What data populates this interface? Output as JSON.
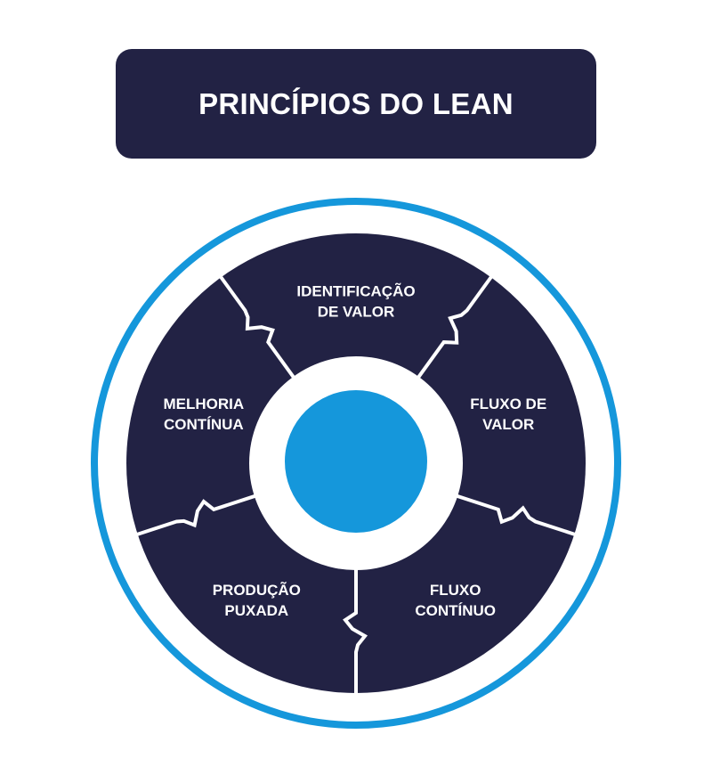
{
  "title": "PRINCÍPIOS DO LEAN",
  "colors": {
    "navy": "#222244",
    "blue": "#1597db",
    "white": "#ffffff"
  },
  "segments": [
    {
      "id": "identificacao",
      "lines": [
        "IDENTIFICAÇÃO",
        "DE VALOR"
      ]
    },
    {
      "id": "fluxo-de-valor",
      "lines": [
        "FLUXO DE",
        "VALOR"
      ]
    },
    {
      "id": "fluxo-continuo",
      "lines": [
        "FLUXO",
        "CONTÍNUO"
      ]
    },
    {
      "id": "producao-puxada",
      "lines": [
        "PRODUÇÃO",
        "PUXADA"
      ]
    },
    {
      "id": "melhoria-continua",
      "lines": [
        "MELHORIA",
        "CONTÍNUA"
      ]
    }
  ]
}
